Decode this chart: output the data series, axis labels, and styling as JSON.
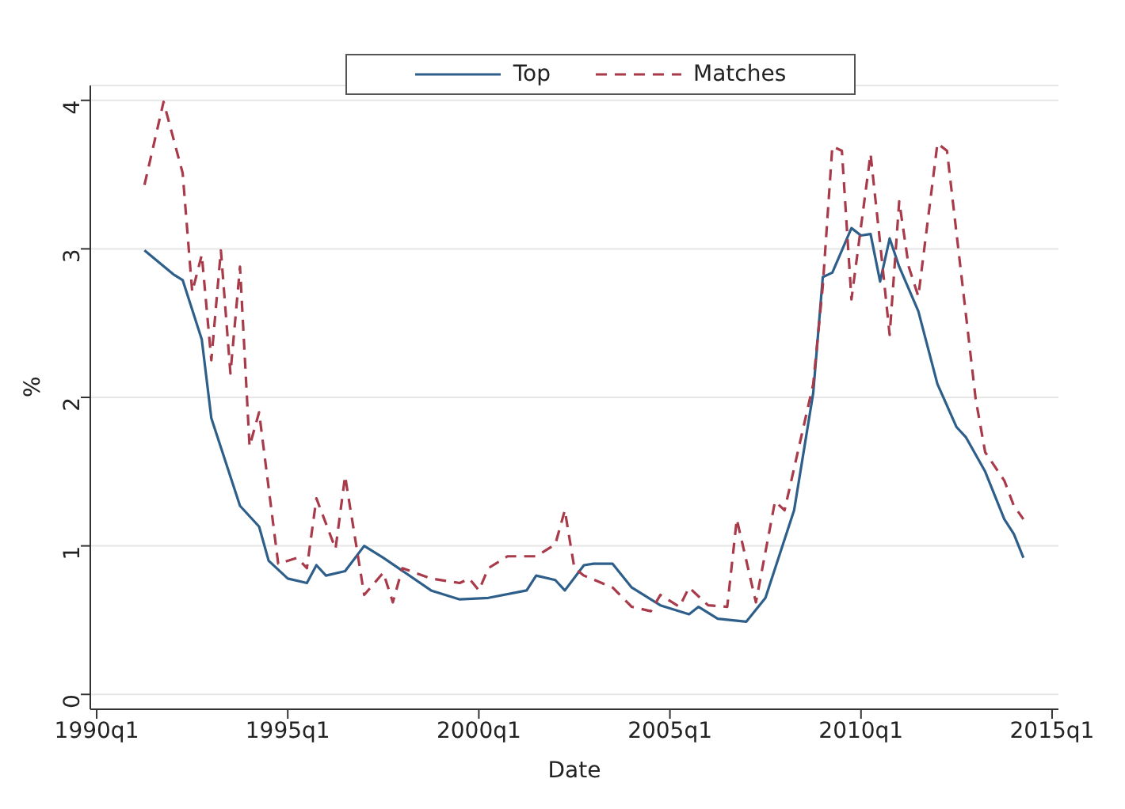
{
  "chart_data": {
    "type": "line",
    "xlabel": "Date",
    "ylabel": "%",
    "xlim": [
      "1989-11",
      "2015-03"
    ],
    "ylim": [
      -0.1,
      4.1
    ],
    "xticks": [
      {
        "value": "1990-01",
        "label": "1990q1"
      },
      {
        "value": "1995-01",
        "label": "1995q1"
      },
      {
        "value": "2000-01",
        "label": "2000q1"
      },
      {
        "value": "2005-01",
        "label": "2005q1"
      },
      {
        "value": "2010-01",
        "label": "2010q1"
      },
      {
        "value": "2015-01",
        "label": "2015q1"
      }
    ],
    "yticks": [
      0,
      1,
      2,
      3,
      4
    ],
    "grid": "y",
    "legend": "top",
    "marker": "none",
    "series": [
      {
        "name": "Top",
        "color": "#2e5f8a",
        "line_style": "solid",
        "x": [
          "1991-04",
          "1992-01",
          "1992-04",
          "1992-10",
          "1993-01",
          "1993-10",
          "1994-04",
          "1994-07",
          "1995-01",
          "1995-07",
          "1995-10",
          "1996-01",
          "1996-07",
          "1997-01",
          "1997-07",
          "1998-10",
          "1999-07",
          "2000-04",
          "2001-04",
          "2001-07",
          "2002-01",
          "2002-04",
          "2002-10",
          "2003-01",
          "2003-07",
          "2004-01",
          "2004-10",
          "2005-07",
          "2005-10",
          "2006-04",
          "2007-01",
          "2007-07",
          "2008-04",
          "2008-10",
          "2009-01",
          "2009-04",
          "2009-10",
          "2010-01",
          "2010-04",
          "2010-07",
          "2010-10",
          "2011-01",
          "2011-07",
          "2012-01",
          "2012-07",
          "2012-10",
          "2013-04",
          "2013-10",
          "2014-01",
          "2014-04"
        ],
        "values": [
          2.99,
          2.83,
          2.79,
          2.39,
          1.86,
          1.27,
          1.13,
          0.9,
          0.78,
          0.75,
          0.87,
          0.8,
          0.83,
          1.0,
          0.92,
          0.7,
          0.64,
          0.65,
          0.7,
          0.8,
          0.77,
          0.7,
          0.87,
          0.88,
          0.88,
          0.72,
          0.6,
          0.54,
          0.59,
          0.51,
          0.49,
          0.65,
          1.24,
          2.03,
          2.81,
          2.84,
          3.14,
          3.09,
          3.1,
          2.78,
          3.07,
          2.88,
          2.58,
          2.09,
          1.8,
          1.73,
          1.5,
          1.18,
          1.08,
          0.92
        ]
      },
      {
        "name": "Matches",
        "color": "#a83a4a",
        "line_style": "dashed",
        "x": [
          "1991-04",
          "1991-10",
          "1992-04",
          "1992-07",
          "1992-10",
          "1993-01",
          "1993-04",
          "1993-07",
          "1993-10",
          "1994-01",
          "1994-04",
          "1994-10",
          "1995-04",
          "1995-07",
          "1995-10",
          "1996-04",
          "1996-07",
          "1997-01",
          "1997-07",
          "1997-10",
          "1998-01",
          "1998-10",
          "1999-07",
          "1999-10",
          "2000-01",
          "2000-04",
          "2000-10",
          "2001-07",
          "2002-01",
          "2002-04",
          "2002-07",
          "2002-10",
          "2003-07",
          "2004-01",
          "2004-07",
          "2004-10",
          "2005-04",
          "2005-07",
          "2006-01",
          "2006-07",
          "2006-10",
          "2007-04",
          "2007-10",
          "2008-01",
          "2008-10",
          "2009-01",
          "2009-04",
          "2009-07",
          "2009-10",
          "2010-04",
          "2010-07",
          "2010-10",
          "2011-01",
          "2011-04",
          "2011-07",
          "2012-01",
          "2012-04",
          "2013-01",
          "2013-04",
          "2013-10",
          "2014-01",
          "2014-04"
        ],
        "values": [
          3.43,
          3.99,
          3.51,
          2.71,
          2.96,
          2.25,
          2.99,
          2.16,
          2.88,
          1.67,
          1.9,
          0.88,
          0.92,
          0.85,
          1.32,
          0.98,
          1.47,
          0.67,
          0.82,
          0.62,
          0.85,
          0.78,
          0.75,
          0.78,
          0.7,
          0.85,
          0.93,
          0.93,
          1.01,
          1.24,
          0.85,
          0.8,
          0.72,
          0.59,
          0.56,
          0.67,
          0.59,
          0.72,
          0.6,
          0.59,
          1.18,
          0.62,
          1.3,
          1.24,
          2.09,
          2.75,
          3.69,
          3.66,
          2.66,
          3.64,
          3.04,
          2.42,
          3.32,
          2.88,
          2.68,
          3.71,
          3.66,
          1.99,
          1.63,
          1.44,
          1.27,
          1.18
        ]
      }
    ]
  }
}
